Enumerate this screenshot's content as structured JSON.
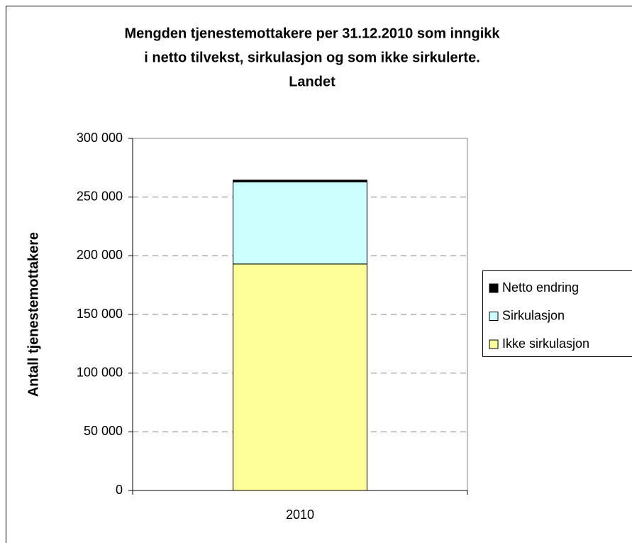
{
  "chart_data": {
    "type": "stacked-bar",
    "title": [
      "Mengden tjenestemottakere per 31.12.2010 som inngikk",
      "i netto tilvekst, sirkulasjon og som ikke sirkulerte.",
      "Landet"
    ],
    "y_label": "Antall tjenestemottakere",
    "categories": [
      "2010"
    ],
    "series": [
      {
        "name": "Ikke sirkulasjon",
        "color": "#ffff99",
        "values": [
          193000
        ]
      },
      {
        "name": "Sirkulasjon",
        "color": "#ccffff",
        "values": [
          70000
        ]
      },
      {
        "name": "Netto endring",
        "color": "#000000",
        "values": [
          1500
        ]
      }
    ],
    "ylim": [
      0,
      300000
    ],
    "yticks": [
      0,
      {
        "value": 50000,
        "label": "50 000"
      },
      {
        "value": 100000,
        "label": "100 000"
      },
      {
        "value": 150000,
        "label": "150 000"
      },
      {
        "value": 200000,
        "label": "200 000"
      },
      {
        "value": 250000,
        "label": "250 000"
      },
      {
        "value": 300000,
        "label": "300 000"
      }
    ],
    "grid": true,
    "legend": "right"
  }
}
